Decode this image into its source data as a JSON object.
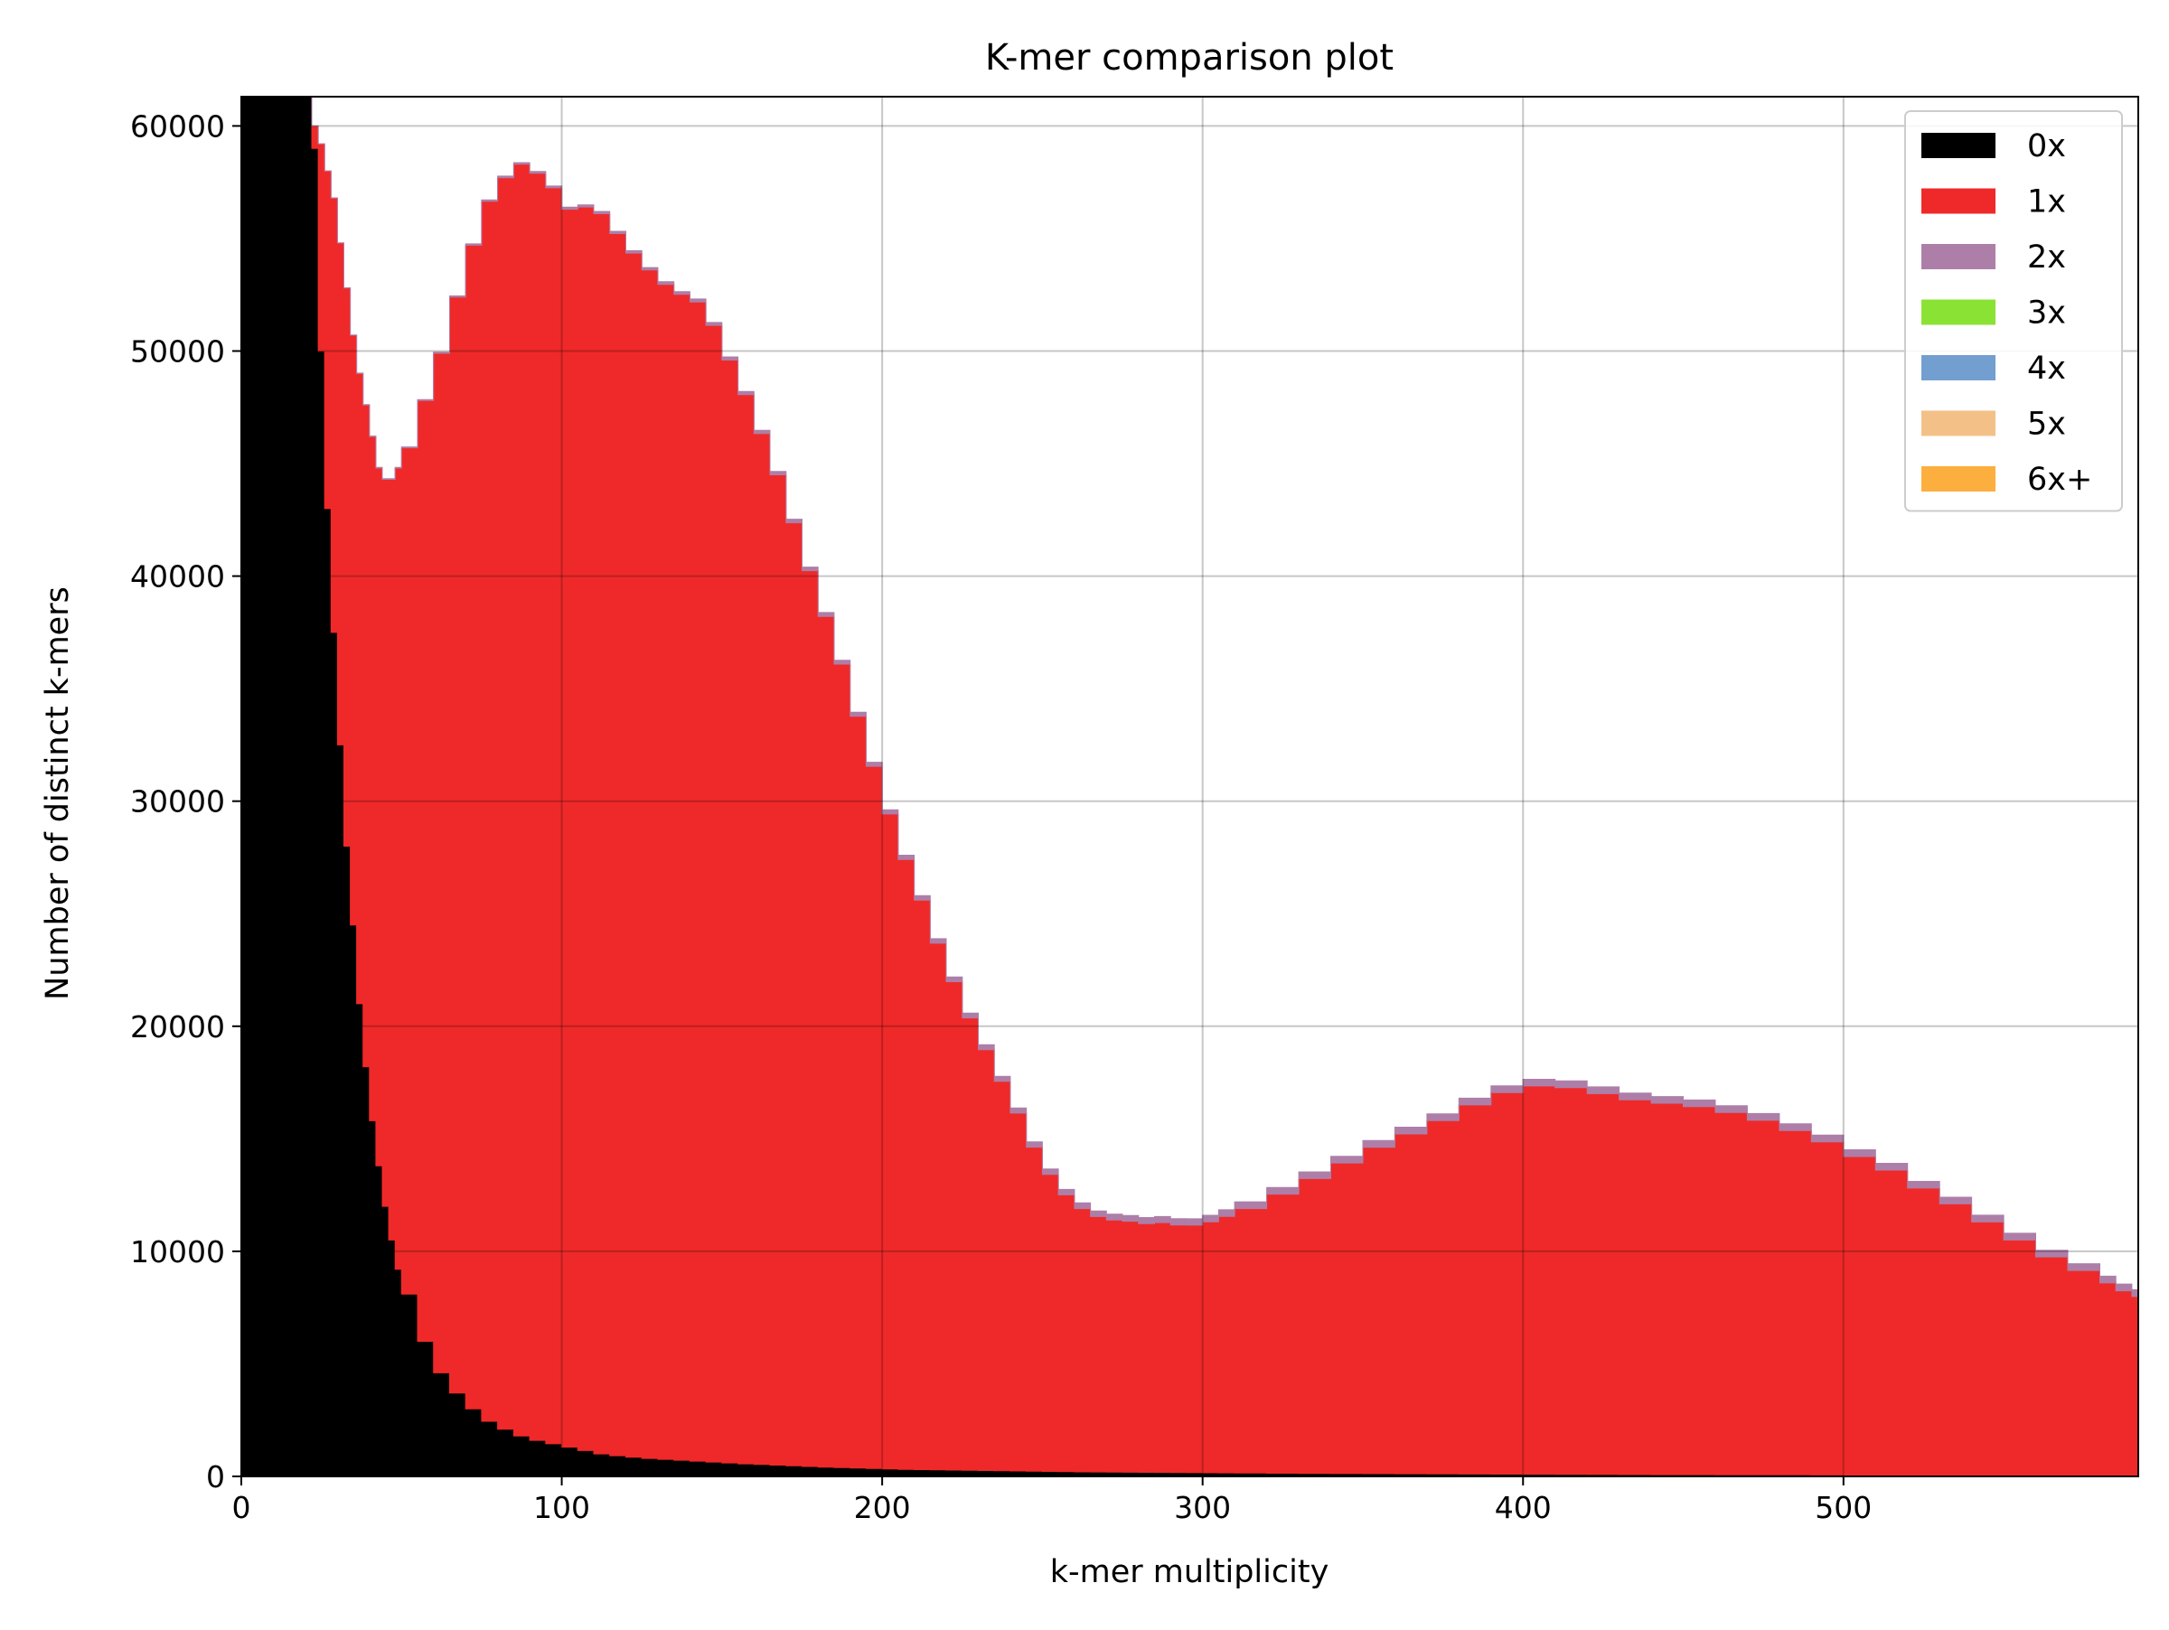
{
  "chart_data": {
    "type": "area",
    "title": "K-mer comparison plot",
    "xlabel": "k-mer multiplicity",
    "ylabel": "Number of distinct k-mers",
    "xlim": [
      0,
      592
    ],
    "ylim": [
      0,
      61300
    ],
    "x_ticks": [
      0,
      100,
      200,
      300,
      400,
      500
    ],
    "y_ticks": [
      0,
      10000,
      20000,
      30000,
      40000,
      50000,
      60000
    ],
    "grid": true,
    "legend": {
      "placement": "top-right"
    },
    "stacked": true,
    "x": [
      0,
      5,
      10,
      15,
      20,
      22,
      24,
      26,
      28,
      30,
      32,
      34,
      36,
      38,
      40,
      42,
      44,
      46,
      48,
      50,
      55,
      60,
      65,
      70,
      75,
      80,
      85,
      90,
      95,
      100,
      105,
      110,
      115,
      120,
      125,
      130,
      135,
      140,
      145,
      150,
      155,
      160,
      165,
      170,
      175,
      180,
      185,
      190,
      195,
      200,
      205,
      210,
      215,
      220,
      225,
      230,
      235,
      240,
      245,
      250,
      255,
      260,
      265,
      270,
      275,
      280,
      285,
      290,
      295,
      300,
      305,
      310,
      320,
      330,
      340,
      350,
      360,
      370,
      380,
      390,
      400,
      410,
      420,
      430,
      440,
      450,
      460,
      470,
      480,
      490,
      500,
      510,
      520,
      530,
      540,
      550,
      560,
      570,
      580,
      585,
      590,
      592
    ],
    "series": [
      {
        "name": "0x",
        "color": "#000000",
        "values": [
          61300,
          61300,
          61300,
          61300,
          61300,
          59000,
          50000,
          43000,
          37500,
          32500,
          28000,
          24500,
          21000,
          18200,
          15800,
          13800,
          12000,
          10500,
          9200,
          8100,
          6000,
          4600,
          3700,
          3000,
          2450,
          2100,
          1800,
          1600,
          1450,
          1300,
          1150,
          1000,
          920,
          850,
          800,
          760,
          720,
          680,
          640,
          600,
          560,
          530,
          500,
          470,
          440,
          410,
          390,
          370,
          350,
          330,
          310,
          300,
          290,
          280,
          270,
          260,
          250,
          240,
          230,
          220,
          210,
          200,
          195,
          190,
          185,
          180,
          175,
          170,
          165,
          160,
          155,
          150,
          140,
          130,
          125,
          120,
          115,
          110,
          105,
          100,
          95,
          90,
          85,
          80,
          78,
          75,
          72,
          70,
          68,
          65,
          62,
          60,
          58,
          56,
          54,
          52,
          50,
          48,
          46,
          45,
          44,
          44
        ]
      },
      {
        "name": "1x",
        "color": "#ef2929",
        "values": [
          0,
          0,
          0,
          0,
          0,
          1000,
          9200,
          15000,
          19300,
          22300,
          24800,
          26200,
          28000,
          29400,
          30400,
          31000,
          32300,
          33800,
          35600,
          37600,
          41800,
          45300,
          48700,
          51700,
          54200,
          55600,
          56500,
          56300,
          55800,
          55000,
          55250,
          55100,
          54300,
          53500,
          52800,
          52200,
          51800,
          51500,
          50500,
          49000,
          47500,
          45800,
          44000,
          41900,
          39800,
          37800,
          35700,
          33400,
          31200,
          29100,
          27100,
          25300,
          23400,
          21700,
          20100,
          18700,
          17300,
          15900,
          14400,
          13200,
          12300,
          11700,
          11350,
          11200,
          11150,
          11050,
          11100,
          11000,
          11000,
          11150,
          11400,
          11750,
          12400,
          13100,
          13800,
          14500,
          15100,
          15700,
          16400,
          16950,
          17250,
          17180,
          16920,
          16650,
          16500,
          16350,
          16100,
          15750,
          15300,
          14800,
          14150,
          13550,
          12750,
          12050,
          11250,
          10450,
          9700,
          9100,
          8550,
          8200,
          7950,
          7850
        ]
      },
      {
        "name": "2x",
        "color": "#ad7fa8",
        "values": [
          0,
          0,
          0,
          0,
          0,
          0,
          0,
          0,
          0,
          0,
          10,
          10,
          20,
          20,
          20,
          30,
          30,
          30,
          30,
          40,
          40,
          50,
          50,
          60,
          60,
          70,
          70,
          80,
          80,
          90,
          90,
          100,
          100,
          110,
          110,
          120,
          120,
          130,
          130,
          140,
          140,
          150,
          150,
          160,
          160,
          170,
          170,
          180,
          180,
          190,
          190,
          200,
          200,
          210,
          210,
          220,
          220,
          230,
          230,
          240,
          240,
          250,
          250,
          260,
          260,
          270,
          270,
          280,
          280,
          290,
          290,
          300,
          300,
          300,
          300,
          300,
          300,
          300,
          300,
          300,
          300,
          300,
          300,
          300,
          300,
          300,
          300,
          300,
          300,
          300,
          300,
          300,
          300,
          300,
          300,
          300,
          300,
          300,
          300,
          300,
          300,
          300
        ]
      },
      {
        "name": "3x",
        "color": "#8ae234",
        "values": [
          0,
          0,
          0,
          0,
          0,
          0,
          0,
          0,
          0,
          0,
          0,
          0,
          0,
          0,
          0,
          0,
          0,
          0,
          0,
          0,
          0,
          0,
          0,
          0,
          0,
          0,
          0,
          0,
          0,
          0,
          0,
          0,
          0,
          0,
          0,
          0,
          0,
          0,
          0,
          0,
          0,
          0,
          0,
          0,
          0,
          0,
          0,
          0,
          0,
          0,
          0,
          0,
          0,
          0,
          0,
          0,
          0,
          0,
          0,
          0,
          0,
          0,
          0,
          0,
          0,
          0,
          0,
          0,
          0,
          0,
          0,
          0,
          0,
          0,
          0,
          0,
          0,
          0,
          0,
          0,
          0,
          0,
          0,
          0,
          0,
          0,
          0,
          0,
          0,
          0,
          0,
          0,
          0,
          0,
          0,
          0,
          0,
          0,
          0,
          0,
          0,
          0
        ]
      },
      {
        "name": "4x",
        "color": "#729fcf",
        "values": [
          0,
          0,
          0,
          0,
          0,
          0,
          0,
          0,
          0,
          0,
          0,
          0,
          0,
          0,
          0,
          0,
          0,
          0,
          0,
          0,
          0,
          0,
          0,
          0,
          0,
          0,
          0,
          0,
          0,
          0,
          0,
          0,
          0,
          0,
          0,
          0,
          0,
          0,
          0,
          0,
          0,
          0,
          0,
          0,
          0,
          0,
          0,
          0,
          0,
          0,
          0,
          0,
          0,
          0,
          0,
          0,
          0,
          0,
          0,
          0,
          0,
          0,
          0,
          0,
          0,
          0,
          0,
          0,
          0,
          0,
          0,
          0,
          0,
          0,
          0,
          0,
          0,
          0,
          0,
          0,
          0,
          0,
          0,
          0,
          0,
          0,
          0,
          0,
          0,
          0,
          0,
          0,
          0,
          0,
          0,
          0,
          0,
          0,
          0,
          0,
          0,
          0
        ]
      },
      {
        "name": "5x",
        "color": "#f3c188",
        "values": [
          0,
          0,
          0,
          0,
          0,
          0,
          0,
          0,
          0,
          0,
          0,
          0,
          0,
          0,
          0,
          0,
          0,
          0,
          0,
          0,
          0,
          0,
          0,
          0,
          0,
          0,
          0,
          0,
          0,
          0,
          0,
          0,
          0,
          0,
          0,
          0,
          0,
          0,
          0,
          0,
          0,
          0,
          0,
          0,
          0,
          0,
          0,
          0,
          0,
          0,
          0,
          0,
          0,
          0,
          0,
          0,
          0,
          0,
          0,
          0,
          0,
          0,
          0,
          0,
          0,
          0,
          0,
          0,
          0,
          0,
          0,
          0,
          0,
          0,
          0,
          0,
          0,
          0,
          0,
          0,
          0,
          0,
          0,
          0,
          0,
          0,
          0,
          0,
          0,
          0,
          0,
          0,
          0,
          0,
          0,
          0,
          0,
          0,
          0,
          0,
          0,
          0
        ]
      },
      {
        "name": "6x+",
        "color": "#fcaf3e",
        "values": [
          0,
          0,
          0,
          0,
          0,
          0,
          0,
          0,
          0,
          0,
          0,
          0,
          0,
          0,
          0,
          0,
          0,
          0,
          0,
          0,
          0,
          0,
          0,
          0,
          0,
          0,
          0,
          0,
          0,
          0,
          0,
          0,
          0,
          0,
          0,
          0,
          0,
          0,
          0,
          0,
          0,
          0,
          0,
          0,
          0,
          0,
          0,
          0,
          0,
          0,
          0,
          0,
          0,
          0,
          0,
          0,
          0,
          0,
          0,
          0,
          0,
          0,
          0,
          0,
          0,
          0,
          0,
          0,
          0,
          0,
          0,
          0,
          0,
          0,
          0,
          0,
          0,
          0,
          0,
          0,
          0,
          0,
          0,
          0,
          0,
          0,
          0,
          0,
          0,
          0,
          0,
          0,
          0,
          0,
          0,
          0,
          0,
          0,
          0,
          0,
          0,
          0
        ]
      }
    ]
  }
}
